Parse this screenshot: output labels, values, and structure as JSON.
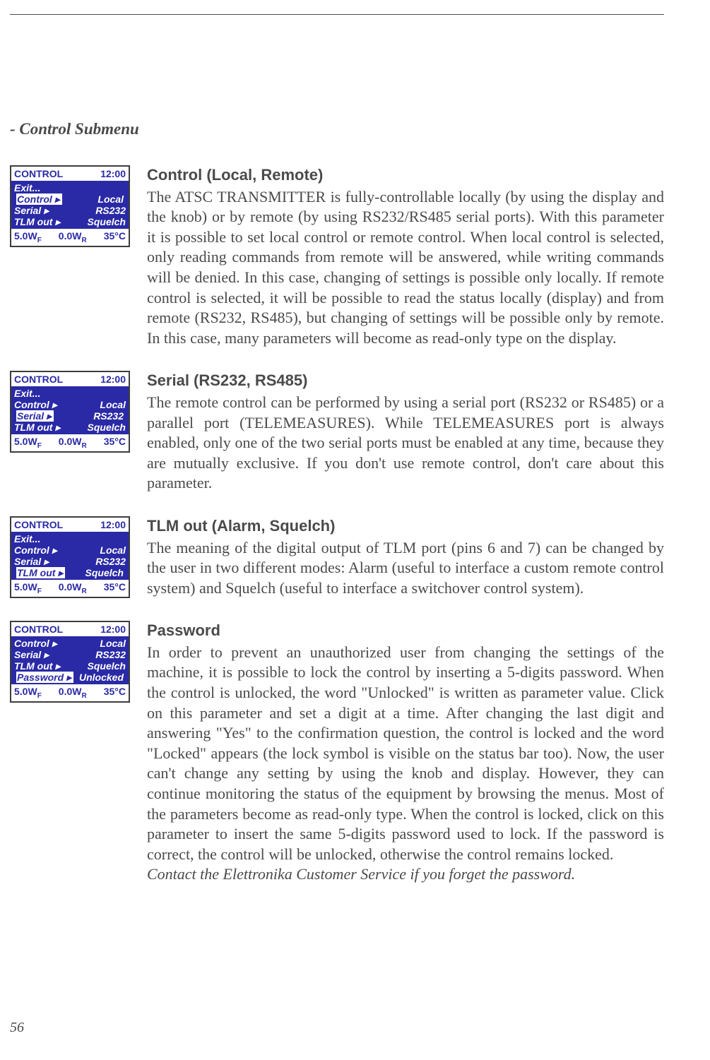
{
  "page_number": "56",
  "section_title": "- Control Submenu",
  "lcd_colors": {
    "bg": "#2a2aa6",
    "fg": "#ffffff",
    "frame": "#3d3d3d"
  },
  "entries": [
    {
      "heading": "Control (Local, Remote)",
      "body": "The ATSC TRANSMITTER is fully-controllable locally (by using the display and the knob) or by remote (by using RS232/RS485 serial ports). With this parameter it is possible to set local control or remote control. When local control is selected, only reading commands from remote will be answered, while writing commands will be denied. In this case, changing of settings is possible only locally. If remote control is selected, it will be possible to read the status locally (display) and from remote (RS232, RS485), but changing of settings will be possible only by remote. In this case, many parameters will become as read-only type on the display.",
      "note": "",
      "lcd": {
        "title": "CONTROL",
        "time": "12:00",
        "rows": [
          {
            "l": "Exit...",
            "r": ""
          },
          {
            "l": "Control ▸",
            "r": "Local",
            "sel": true
          },
          {
            "l": "Serial ▸",
            "r": "RS232"
          },
          {
            "l": "TLM out ▸",
            "r": "Squelch"
          }
        ],
        "status_l": "5.0W",
        "status_m": "0.0W",
        "status_r": "35°C"
      }
    },
    {
      "heading": "Serial (RS232, RS485)",
      "body": "The remote control can be performed by using a serial port (RS232 or RS485) or a parallel port (TELEMEASURES). While TELEMEASURES port is always enabled, only one of the two serial ports must be enabled at any time, because they are mutually exclusive. If you don't use remote control, don't care about this parameter.",
      "note": "",
      "lcd": {
        "title": "CONTROL",
        "time": "12:00",
        "rows": [
          {
            "l": "Exit...",
            "r": ""
          },
          {
            "l": "Control ▸",
            "r": "Local"
          },
          {
            "l": "Serial ▸",
            "r": "RS232",
            "sel": true
          },
          {
            "l": "TLM out ▸",
            "r": "Squelch"
          }
        ],
        "status_l": "5.0W",
        "status_m": "0.0W",
        "status_r": "35°C"
      }
    },
    {
      "heading": "TLM out (Alarm, Squelch)",
      "body": "The meaning of the digital output of TLM port (pins 6 and 7) can be changed by the user in two different modes: Alarm (useful to interface a custom remote control system) and Squelch (useful to interface a switchover control system).",
      "note": "",
      "lcd": {
        "title": "CONTROL",
        "time": "12:00",
        "rows": [
          {
            "l": "Exit...",
            "r": ""
          },
          {
            "l": "Control ▸",
            "r": "Local"
          },
          {
            "l": "Serial ▸",
            "r": "RS232"
          },
          {
            "l": "TLM out ▸",
            "r": "Squelch",
            "sel": true
          }
        ],
        "status_l": "5.0W",
        "status_m": "0.0W",
        "status_r": "35°C"
      }
    },
    {
      "heading": "Password",
      "body": "In order to prevent an unauthorized user from changing the settings of the machine, it is possible to lock the control by inserting a 5-digits password. When the control is unlocked, the word \"Unlocked\" is written as parameter value. Click on this parameter and set a digit at a time. After changing the last digit and answering \"Yes\" to the confirmation question, the control is locked and the word \"Locked\" appears (the lock symbol is visible on the status bar too). Now, the user can't change any setting by using the knob and display. However, they can continue monitoring the status of the equipment by browsing the menus. Most of the parameters become as read-only type. When the control is locked, click on this parameter to insert the same 5-digits password used to lock. If the password is correct, the control will be unlocked, otherwise the control remains locked.",
      "note": "Contact the Elettronika Customer Service if you forget the password.",
      "lcd": {
        "title": "CONTROL",
        "time": "12:00",
        "rows": [
          {
            "l": "Control ▸",
            "r": "Local"
          },
          {
            "l": "Serial ▸",
            "r": "RS232"
          },
          {
            "l": "TLM out ▸",
            "r": "Squelch"
          },
          {
            "l": "Password ▸",
            "r": "Unlocked",
            "sel": true
          }
        ],
        "status_l": "5.0W",
        "status_m": "0.0W",
        "status_r": "35°C"
      }
    }
  ],
  "status_subs": {
    "f": "F",
    "r": "R"
  }
}
